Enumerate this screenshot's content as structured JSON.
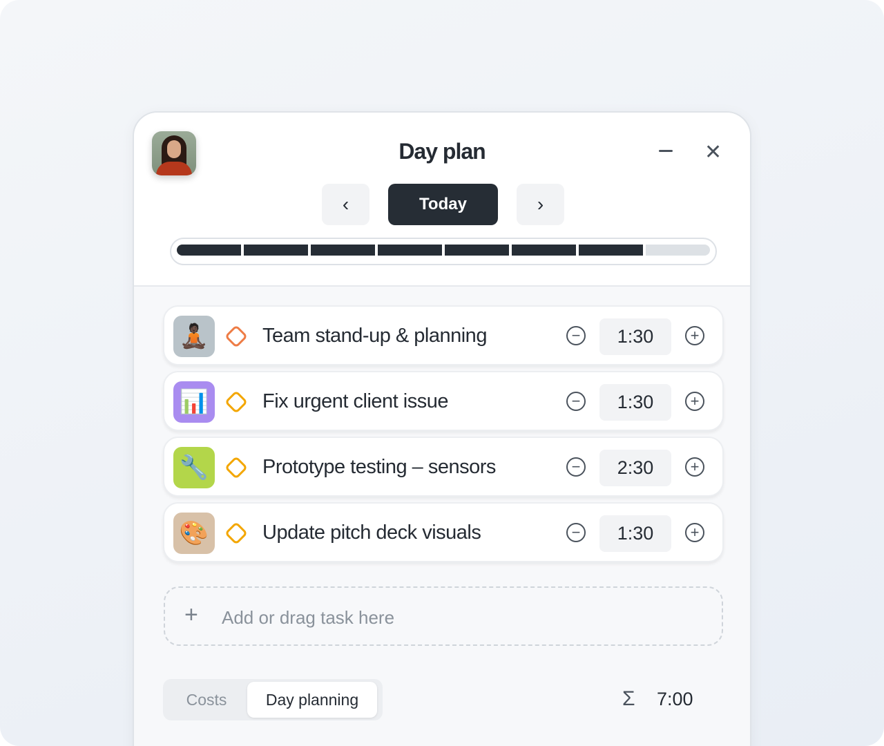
{
  "header": {
    "title": "Day plan",
    "today_label": "Today",
    "prev_icon": "chevron-left-icon",
    "next_icon": "chevron-right-icon",
    "minimize_icon": "minimize-icon",
    "close_icon": "close-icon"
  },
  "progress": {
    "filled_segments": 7,
    "total_segments": 8
  },
  "tasks": [
    {
      "name": "Team stand-up & planning",
      "duration": "1:30",
      "icon": "person-meditating-icon",
      "status_color": "#ee7c45",
      "in_progress": true
    },
    {
      "name": "Fix urgent client issue",
      "duration": "1:30",
      "icon": "bar-chart-icon",
      "status_color": "#f3a600"
    },
    {
      "name": "Prototype testing – sensors",
      "duration": "2:30",
      "icon": "wrench-icon",
      "status_color": "#f3a600"
    },
    {
      "name": "Update pitch deck visuals",
      "duration": "1:30",
      "icon": "palette-icon",
      "status_color": "#f3a600"
    }
  ],
  "add_task": {
    "label": "Add or drag task here"
  },
  "footer": {
    "tabs": [
      "Costs",
      "Day planning"
    ],
    "active_tab": "Day planning",
    "total": "7:00",
    "sum_icon": "sigma-icon"
  }
}
